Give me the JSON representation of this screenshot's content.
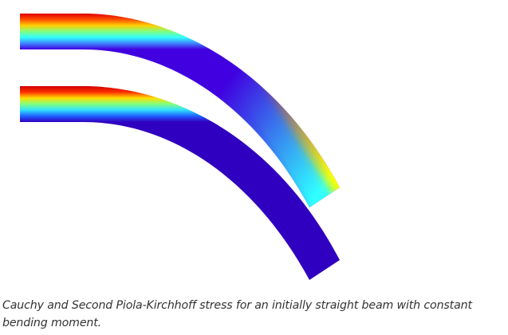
{
  "figure": {
    "beams": [
      {
        "name": "cauchy-stress-beam",
        "stops": [
          "#df0000",
          "#ff5000",
          "#ffd000",
          "#80ff80",
          "#30ffff",
          "#4080ff",
          "#4000e0"
        ],
        "tip_stops": [
          "#ffff00",
          "#c0ff40",
          "#50ffd0",
          "#30ffff",
          "#30ffff",
          "#30ffff",
          "#30e8ff"
        ]
      },
      {
        "name": "second-piola-kirchhoff-stress-beam",
        "stops": [
          "#d00000",
          "#ff3000",
          "#ffe000",
          "#80ff80",
          "#30e0ff",
          "#2060ff",
          "#3000c0"
        ]
      }
    ]
  },
  "caption": {
    "text": "Cauchy and Second Piola-Kirchhoff stress for an initially straight beam with constant bending moment."
  }
}
